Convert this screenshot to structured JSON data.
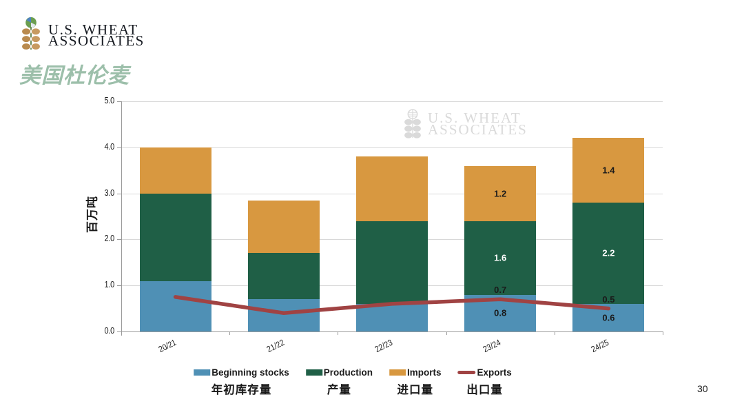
{
  "header": {
    "logo": {
      "line1": "U.S. WHEAT",
      "line2": "ASSOCIATES"
    },
    "title": "美国杜伦麦"
  },
  "watermark": {
    "line1": "U.S. WHEAT",
    "line2": "ASSOCIATES"
  },
  "page_number": "30",
  "chart_data": {
    "type": "bar",
    "subtype": "stacked-bar-with-line",
    "title": "",
    "categories": [
      "20/21",
      "21/22",
      "22/23",
      "23/24",
      "24/25"
    ],
    "series": [
      {
        "name": "Beginning stocks",
        "name_zh": "年初库存量",
        "kind": "bar",
        "color": "#4F90B5",
        "label_color": "#1a1a1a",
        "values": [
          1.1,
          0.7,
          0.6,
          0.8,
          0.6
        ]
      },
      {
        "name": "Production",
        "name_zh": "产量",
        "kind": "bar",
        "color": "#1F5F46",
        "label_color": "#ffffff",
        "values": [
          1.9,
          1.0,
          1.8,
          1.6,
          2.2
        ]
      },
      {
        "name": "Imports",
        "name_zh": "进口量",
        "kind": "bar",
        "color": "#D89840",
        "label_color": "#1a1a1a",
        "values": [
          1.0,
          1.15,
          1.4,
          1.2,
          1.4
        ]
      },
      {
        "name": "Exports",
        "name_zh": "出口量",
        "kind": "line",
        "color": "#A04343",
        "label_color": "#1a1a1a",
        "values": [
          0.75,
          0.4,
          0.6,
          0.7,
          0.5
        ]
      }
    ],
    "categories_with_labels": [
      "23/24",
      "24/25"
    ],
    "xlabel": "",
    "ylabel": "百万吨",
    "ylim": [
      0,
      5
    ],
    "ytick_step": 1,
    "grid": true,
    "legend_position": "bottom"
  }
}
